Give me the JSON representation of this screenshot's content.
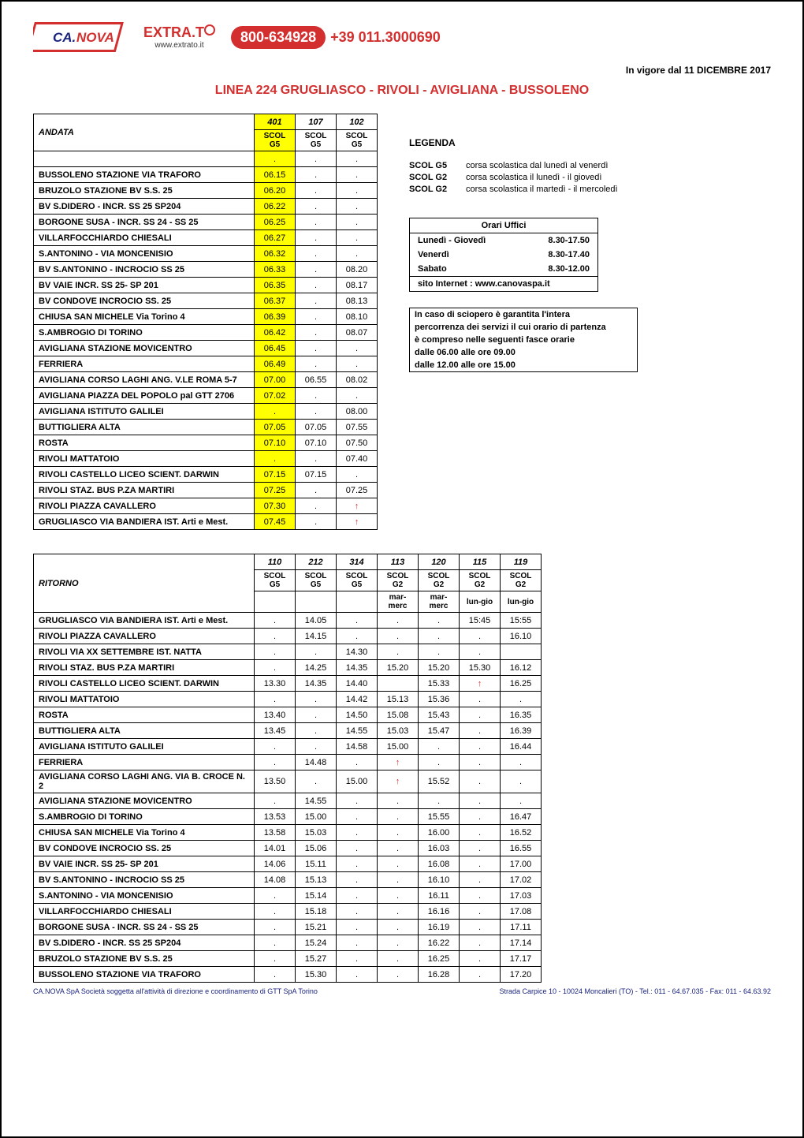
{
  "header": {
    "vigore": "In vigore dal 11 DICEMBRE  2017",
    "linea_title": "LINEA 224    GRUGLIASCO - RIVOLI - AVIGLIANA - BUSSOLENO",
    "phone_pill": "800-634928",
    "phone_intl": "+39 011.3000690",
    "extrato_url": "www.extrato.it"
  },
  "andata": {
    "label": "ANDATA",
    "codes": [
      "401",
      "107",
      "102"
    ],
    "scol": [
      "SCOL G5",
      "SCOL G5",
      "SCOL G5"
    ],
    "yellow_cols": [
      true,
      false,
      false
    ],
    "rows": [
      {
        "stop": "BUSSOLENO STAZIONE VIA TRAFORO",
        "t": [
          "06.15",
          ".",
          "."
        ]
      },
      {
        "stop": "BRUZOLO STAZIONE  BV S.S. 25",
        "t": [
          "06.20",
          ".",
          "."
        ]
      },
      {
        "stop": "BV S.DIDERO - INCR. SS 25  SP204",
        "t": [
          "06.22",
          ".",
          "."
        ]
      },
      {
        "stop": "BORGONE SUSA - INCR. SS 24 - SS 25",
        "t": [
          "06.25",
          ".",
          "."
        ]
      },
      {
        "stop": "VILLARFOCCHIARDO CHIESALI",
        "t": [
          "06.27",
          ".",
          "."
        ]
      },
      {
        "stop": "S.ANTONINO  - VIA MONCENISIO",
        "t": [
          "06.32",
          ".",
          "."
        ]
      },
      {
        "stop": "BV S.ANTONINO - INCROCIO SS 25",
        "t": [
          "06.33",
          ".",
          "08.20"
        ]
      },
      {
        "stop": "BV VAIE   INCR. SS 25-  SP 201",
        "t": [
          "06.35",
          ".",
          "08.17"
        ]
      },
      {
        "stop": "BV CONDOVE INCROCIO SS. 25",
        "t": [
          "06.37",
          ".",
          "08.13"
        ]
      },
      {
        "stop": "CHIUSA SAN MICHELE Via Torino 4",
        "t": [
          "06.39",
          ".",
          "08.10"
        ]
      },
      {
        "stop": "S.AMBROGIO DI TORINO",
        "t": [
          "06.42",
          ".",
          "08.07"
        ]
      },
      {
        "stop": "AVIGLIANA STAZIONE MOVICENTRO",
        "t": [
          "06.45",
          ".",
          "."
        ]
      },
      {
        "stop": "FERRIERA",
        "t": [
          "06.49",
          ".",
          "."
        ]
      },
      {
        "stop": "AVIGLIANA CORSO LAGHI ANG. V.LE ROMA 5-7",
        "t": [
          "07.00",
          "06.55",
          "08.02"
        ]
      },
      {
        "stop": "AVIGLIANA PIAZZA DEL POPOLO pal GTT 2706",
        "t": [
          "07.02",
          ".",
          "."
        ]
      },
      {
        "stop": "AVIGLIANA ISTITUTO GALILEI",
        "t": [
          ".",
          ".",
          "08.00"
        ]
      },
      {
        "stop": "BUTTIGLIERA ALTA",
        "t": [
          "07.05",
          "07.05",
          "07.55"
        ]
      },
      {
        "stop": "ROSTA",
        "t": [
          "07.10",
          "07.10",
          "07.50"
        ]
      },
      {
        "stop": "RIVOLI MATTATOIO",
        "t": [
          ".",
          ".",
          "07.40"
        ]
      },
      {
        "stop": "RIVOLI CASTELLO  LICEO SCIENT. DARWIN",
        "t": [
          "07.15",
          "07.15",
          "."
        ]
      },
      {
        "stop": "RIVOLI STAZ. BUS P.ZA MARTIRI",
        "t": [
          "07.25",
          ".",
          "07.25"
        ]
      },
      {
        "stop": "RIVOLI PIAZZA CAVALLERO",
        "t": [
          "07.30",
          ".",
          "↑"
        ]
      },
      {
        "stop": "GRUGLIASCO VIA  BANDIERA IST. Arti e Mest.",
        "t": [
          "07.45",
          ".",
          "↑"
        ]
      }
    ]
  },
  "legend": {
    "title": "LEGENDA",
    "items": [
      {
        "key": "SCOL G5",
        "text": "corsa scolastica dal lunedì al venerdì"
      },
      {
        "key": "SCOL G2",
        "text": "corsa scolastica il lunedì - il giovedì"
      },
      {
        "key": "SCOL G2",
        "text": "corsa scolastica il martedì - il mercoledì"
      }
    ]
  },
  "orari": {
    "title": "Orari Uffici",
    "rows": [
      {
        "k": "Lunedì - Giovedì",
        "v": "8.30-17.50"
      },
      {
        "k": "Venerdì",
        "v": "8.30-17.40"
      },
      {
        "k": "Sabato",
        "v": "8.30-12.00"
      }
    ],
    "site": "sito Internet : www.canovaspa.it"
  },
  "sciopero": [
    "In caso di sciopero è garantita l'intera",
    "percorrenza dei servizi il cui orario di partenza",
    "è compreso nelle seguenti fasce orarie",
    "dalle 06.00 alle ore  09.00",
    "dalle 12.00 alle ore 15.00"
  ],
  "ritorno": {
    "label": "RITORNO",
    "codes": [
      "110",
      "212",
      "314",
      "113",
      "120",
      "115",
      "119"
    ],
    "scol": [
      "SCOL G5",
      "SCOL G5",
      "SCOL G5",
      "SCOL G2",
      "SCOL G2",
      "SCOL G2",
      "SCOL G2"
    ],
    "sub": [
      "",
      "",
      "",
      "mar-merc",
      "mar-merc",
      "lun-gio",
      "lun-gio"
    ],
    "rows": [
      {
        "stop": "GRUGLIASCO VIA  BANDIERA IST. Arti e Mest.",
        "t": [
          ".",
          "14.05",
          ".",
          ".",
          ".",
          "15:45",
          "15:55"
        ]
      },
      {
        "stop": "RIVOLI PIAZZA CAVALLERO",
        "t": [
          ".",
          "14.15",
          ".",
          ".",
          ".",
          ".",
          "16.10"
        ]
      },
      {
        "stop": "RIVOLI VIA XX SETTEMBRE IST. NATTA",
        "t": [
          ".",
          ".",
          "14.30",
          ".",
          ".",
          ".",
          ""
        ]
      },
      {
        "stop": "RIVOLI STAZ. BUS P.ZA MARTIRI",
        "t": [
          ".",
          "14.25",
          "14.35",
          "15.20",
          "15.20",
          "15.30",
          "16.12"
        ]
      },
      {
        "stop": "RIVOLI CASTELLO  LICEO SCIENT. DARWIN",
        "t": [
          "13.30",
          "14.35",
          "14.40",
          "",
          "15.33",
          "↑",
          "16.25"
        ]
      },
      {
        "stop": "RIVOLI MATTATOIO",
        "t": [
          ".",
          ".",
          "14.42",
          "15.13",
          "15.36",
          ".",
          "."
        ]
      },
      {
        "stop": "ROSTA",
        "t": [
          "13.40",
          ".",
          "14.50",
          "15.08",
          "15.43",
          ".",
          "16.35"
        ]
      },
      {
        "stop": "BUTTIGLIERA ALTA",
        "t": [
          "13.45",
          ".",
          "14.55",
          "15.03",
          "15.47",
          ".",
          "16.39"
        ]
      },
      {
        "stop": "AVIGLIANA ISTITUTO GALILEI",
        "t": [
          ".",
          ".",
          "14.58",
          "15.00",
          ".",
          ".",
          "16.44"
        ]
      },
      {
        "stop": "FERRIERA",
        "t": [
          ".",
          "14.48",
          ".",
          "↑",
          ".",
          ".",
          "."
        ]
      },
      {
        "stop": "AVIGLIANA CORSO LAGHI ANG. VIA B. CROCE N. 2",
        "t": [
          "13.50",
          ".",
          "15.00",
          "↑",
          "15.52",
          ".",
          "."
        ]
      },
      {
        "stop": "AVIGLIANA STAZIONE MOVICENTRO",
        "t": [
          ".",
          "14.55",
          ".",
          ".",
          ".",
          ".",
          "."
        ]
      },
      {
        "stop": "S.AMBROGIO DI TORINO",
        "t": [
          "13.53",
          "15.00",
          ".",
          ".",
          "15.55",
          ".",
          "16.47"
        ]
      },
      {
        "stop": "CHIUSA SAN MICHELE Via Torino 4",
        "t": [
          "13.58",
          "15.03",
          ".",
          ".",
          "16.00",
          ".",
          "16.52"
        ]
      },
      {
        "stop": "BV CONDOVE INCROCIO SS. 25",
        "t": [
          "14.01",
          "15.06",
          ".",
          ".",
          "16.03",
          ".",
          "16.55"
        ]
      },
      {
        "stop": "BV VAIE   INCR. SS 25-  SP 201",
        "t": [
          "14.06",
          "15.11",
          ".",
          ".",
          "16.08",
          ".",
          "17.00"
        ]
      },
      {
        "stop": "BV S.ANTONINO - INCROCIO SS 25",
        "t": [
          "14.08",
          "15.13",
          ".",
          ".",
          "16.10",
          ".",
          "17.02"
        ]
      },
      {
        "stop": "S.ANTONINO  - VIA MONCENISIO",
        "t": [
          ".",
          "15.14",
          ".",
          ".",
          "16.11",
          ".",
          "17.03"
        ]
      },
      {
        "stop": "VILLARFOCCHIARDO CHIESALI",
        "t": [
          ".",
          "15.18",
          ".",
          ".",
          "16.16",
          ".",
          "17.08"
        ]
      },
      {
        "stop": "BORGONE SUSA - INCR. SS 24 - SS 25",
        "t": [
          ".",
          "15.21",
          ".",
          ".",
          "16.19",
          ".",
          "17.11"
        ]
      },
      {
        "stop": "BV S.DIDERO - INCR. SS 25  SP204",
        "t": [
          ".",
          "15.24",
          ".",
          ".",
          "16.22",
          ".",
          "17.14"
        ]
      },
      {
        "stop": "BRUZOLO STAZIONE  BV S.S. 25",
        "t": [
          ".",
          "15.27",
          ".",
          ".",
          "16.25",
          ".",
          "17.17"
        ]
      },
      {
        "stop": "BUSSOLENO STAZIONE VIA TRAFORO",
        "t": [
          ".",
          "15.30",
          ".",
          ".",
          "16.28",
          ".",
          "17.20"
        ]
      }
    ]
  },
  "footer": {
    "left": "CA.NOVA SpA Società soggetta all'attività di direzione e coordinamento di GTT SpA Torino",
    "right": "Strada Carpice 10 - 10024 Moncalieri (TO) - Tel.: 011 - 64.67.035 - Fax: 011 - 64.63.92"
  },
  "colors": {
    "brand_red": "#d32f2f",
    "yellow": "#ffff00",
    "footer_blue": "#1a237e"
  }
}
